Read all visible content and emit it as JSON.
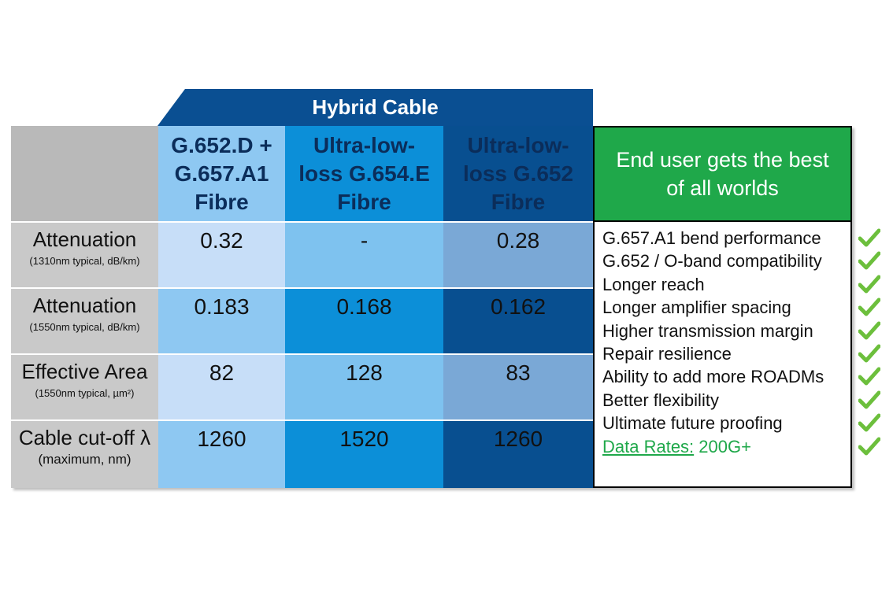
{
  "banner": "Hybrid Cable",
  "columns": [
    {
      "name": "G.652.D + G.657.A1 Fibre",
      "lines": [
        "G.652.D +",
        "G.657.A1",
        "Fibre"
      ],
      "bg": "#8ec8f2",
      "cell_bg": "#c7def8",
      "text": "#0b2d5a"
    },
    {
      "name": "Ultra-low-loss G.654.E Fibre",
      "lines": [
        "Ultra-low-",
        "loss G.654.E",
        "Fibre"
      ],
      "bg": "#0c8fd8",
      "cell_bg": "#7ec2ef",
      "text": "#0b2d5a"
    },
    {
      "name": "Ultra-low-loss G.652 Fibre",
      "lines": [
        "Ultra-low-",
        "loss G.652",
        "Fibre"
      ],
      "bg": "#084f90",
      "cell_bg": "#7aa8d6",
      "text": "#0b2d5a"
    }
  ],
  "rows": [
    {
      "label": "Attenuation",
      "sub": "(1310nm typical, dB/km)",
      "values": [
        "0.32",
        "-",
        "0.28"
      ],
      "cell_bg": [
        "#c7def8",
        "#7ec2ef",
        "#7aa8d6"
      ]
    },
    {
      "label": "Attenuation",
      "sub": "(1550nm typical, dB/km)",
      "values": [
        "0.183",
        "0.168",
        "0.162"
      ],
      "cell_bg": [
        "#8ec8f2",
        "#0c8fd8",
        "#084f90"
      ]
    },
    {
      "label": "Effective Area",
      "sub": "(1550nm typical, µm²)",
      "values": [
        "82",
        "128",
        "83"
      ],
      "cell_bg": [
        "#c7def8",
        "#7ec2ef",
        "#7aa8d6"
      ]
    },
    {
      "label": "Cable cut-off λ",
      "sub": "(maximum, nm)",
      "values": [
        "1260",
        "1520",
        "1260"
      ],
      "cell_bg": [
        "#8ec8f2",
        "#0c8fd8",
        "#084f90"
      ]
    }
  ],
  "summary": {
    "title_lines": [
      "End user gets the best",
      "of all worlds"
    ],
    "benefits": [
      "G.657.A1 bend performance",
      "G.652 / O-band compatibility",
      "Longer reach",
      "Longer amplifier spacing",
      "Higher transmission margin",
      "Repair resilience",
      "Ability to add more ROADMs",
      "Better flexibility",
      "Ultimate future proofing"
    ],
    "last_link": "Data Rates:",
    "last_value": "200G+"
  },
  "colors": {
    "banner": "#0a4f92",
    "summary_green": "#1fa84a",
    "label_gray": "#c9c9c9",
    "check": "#6cbf3c"
  },
  "icons": {
    "check": "checkmark-icon"
  }
}
